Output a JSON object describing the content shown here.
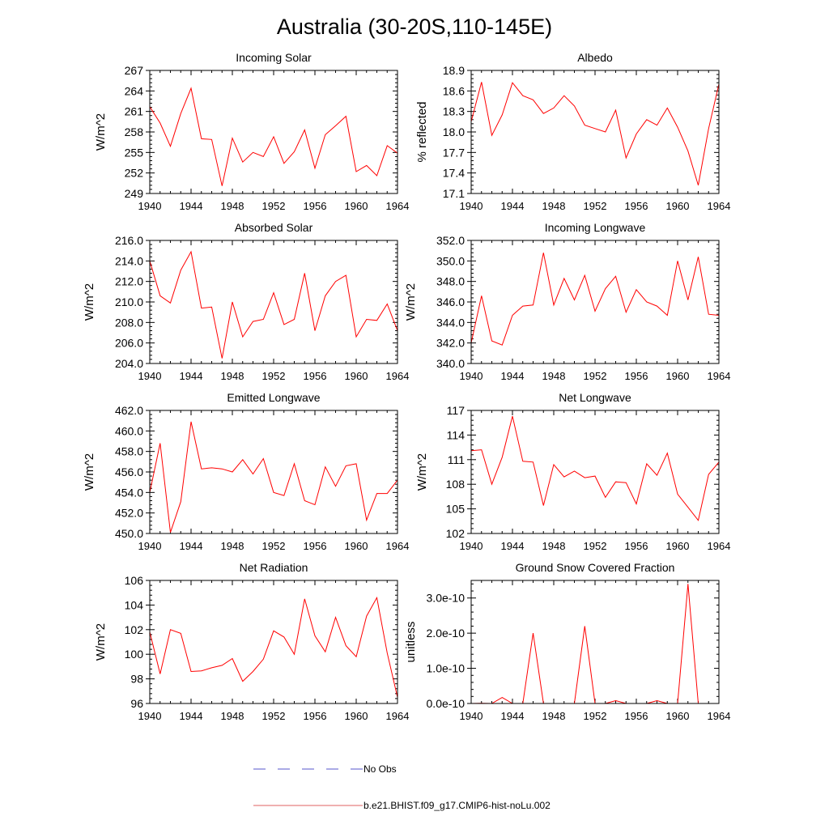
{
  "page": {
    "title": "Australia (30-20S,110-145E)"
  },
  "legend": [
    {
      "label": "No Obs",
      "color": "#5555cc",
      "dash": true
    },
    {
      "label": "b.e21.BHIST.f09_g17.CMIP6-hist-noLu.002",
      "color": "#e06060",
      "dash": false
    }
  ],
  "chart_data": [
    {
      "type": "line",
      "title": "Incoming Solar",
      "ylabel": "W/m^2",
      "xlim": [
        1940,
        1964
      ],
      "ylim": [
        249,
        267
      ],
      "xticks": [
        "1940",
        "1944",
        "1948",
        "1952",
        "1956",
        "1960",
        "1964"
      ],
      "yticks": [
        "249",
        "252",
        "255",
        "258",
        "261",
        "264",
        "267"
      ],
      "x": [
        1940,
        1941,
        1942,
        1943,
        1944,
        1945,
        1946,
        1947,
        1948,
        1949,
        1950,
        1951,
        1952,
        1953,
        1954,
        1955,
        1956,
        1957,
        1958,
        1959,
        1960,
        1961,
        1962,
        1963,
        1964
      ],
      "series": [
        {
          "name": "b.e21.BHIST.f09_g17.CMIP6-hist-noLu.002",
          "color": "#ff0000",
          "values": [
            261.7,
            259.3,
            255.9,
            260.7,
            264.4,
            257.0,
            256.9,
            250.1,
            257.1,
            253.6,
            255.0,
            254.4,
            257.3,
            253.4,
            255.1,
            258.3,
            252.7,
            257.6,
            258.9,
            260.3,
            252.2,
            253.1,
            251.6,
            256.0,
            254.9
          ]
        }
      ]
    },
    {
      "type": "line",
      "title": "Albedo",
      "ylabel": "% reflected",
      "xlim": [
        1940,
        1964
      ],
      "ylim": [
        17.1,
        18.9
      ],
      "xticks": [
        "1940",
        "1944",
        "1948",
        "1952",
        "1956",
        "1960",
        "1964"
      ],
      "yticks": [
        "17.1",
        "17.4",
        "17.7",
        "18.0",
        "18.3",
        "18.6",
        "18.9"
      ],
      "x": [
        1940,
        1941,
        1942,
        1943,
        1944,
        1945,
        1946,
        1947,
        1948,
        1949,
        1950,
        1951,
        1952,
        1953,
        1954,
        1955,
        1956,
        1957,
        1958,
        1959,
        1960,
        1961,
        1962,
        1963,
        1964
      ],
      "series": [
        {
          "name": "b.e21.BHIST.f09_g17.CMIP6-hist-noLu.002",
          "color": "#ff0000",
          "values": [
            18.15,
            18.73,
            17.95,
            18.25,
            18.72,
            18.53,
            18.47,
            18.27,
            18.35,
            18.53,
            18.38,
            18.1,
            18.05,
            18.0,
            18.32,
            17.62,
            17.97,
            18.18,
            18.1,
            18.35,
            18.07,
            17.72,
            17.22,
            18.05,
            18.7
          ]
        }
      ]
    },
    {
      "type": "line",
      "title": "Absorbed Solar",
      "ylabel": "W/m^2",
      "xlim": [
        1940,
        1964
      ],
      "ylim": [
        204.0,
        216.0
      ],
      "xticks": [
        "1940",
        "1944",
        "1948",
        "1952",
        "1956",
        "1960",
        "1964"
      ],
      "yticks": [
        "204.0",
        "206.0",
        "208.0",
        "210.0",
        "212.0",
        "214.0",
        "216.0"
      ],
      "x": [
        1940,
        1941,
        1942,
        1943,
        1944,
        1945,
        1946,
        1947,
        1948,
        1949,
        1950,
        1951,
        1952,
        1953,
        1954,
        1955,
        1956,
        1957,
        1958,
        1959,
        1960,
        1961,
        1962,
        1963,
        1964
      ],
      "series": [
        {
          "name": "b.e21.BHIST.f09_g17.CMIP6-hist-noLu.002",
          "color": "#ff0000",
          "values": [
            214.0,
            210.6,
            209.9,
            213.1,
            214.9,
            209.4,
            209.5,
            204.5,
            210.0,
            206.6,
            208.1,
            208.3,
            210.9,
            207.8,
            208.3,
            212.8,
            207.2,
            210.6,
            212.0,
            212.6,
            206.6,
            208.3,
            208.2,
            209.8,
            207.2
          ]
        }
      ]
    },
    {
      "type": "line",
      "title": "Incoming Longwave",
      "ylabel": "W/m^2",
      "xlim": [
        1940,
        1964
      ],
      "ylim": [
        340.0,
        352.0
      ],
      "xticks": [
        "1940",
        "1944",
        "1948",
        "1952",
        "1956",
        "1960",
        "1964"
      ],
      "yticks": [
        "340.0",
        "342.0",
        "344.0",
        "346.0",
        "348.0",
        "350.0",
        "352.0"
      ],
      "x": [
        1940,
        1941,
        1942,
        1943,
        1944,
        1945,
        1946,
        1947,
        1948,
        1949,
        1950,
        1951,
        1952,
        1953,
        1954,
        1955,
        1956,
        1957,
        1958,
        1959,
        1960,
        1961,
        1962,
        1963,
        1964
      ],
      "series": [
        {
          "name": "b.e21.BHIST.f09_g17.CMIP6-hist-noLu.002",
          "color": "#ff0000",
          "values": [
            342.0,
            346.6,
            342.2,
            341.8,
            344.7,
            345.6,
            345.7,
            350.8,
            345.7,
            348.3,
            346.2,
            348.6,
            345.1,
            347.3,
            348.5,
            345.0,
            347.2,
            346.0,
            345.6,
            344.7,
            350.0,
            346.2,
            350.4,
            344.8,
            344.7
          ]
        }
      ]
    },
    {
      "type": "line",
      "title": "Emitted Longwave",
      "ylabel": "W/m^2",
      "xlim": [
        1940,
        1964
      ],
      "ylim": [
        450.0,
        462.0
      ],
      "xticks": [
        "1940",
        "1944",
        "1948",
        "1952",
        "1956",
        "1960",
        "1964"
      ],
      "yticks": [
        "450.0",
        "452.0",
        "454.0",
        "456.0",
        "458.0",
        "460.0",
        "462.0"
      ],
      "x": [
        1940,
        1941,
        1942,
        1943,
        1944,
        1945,
        1946,
        1947,
        1948,
        1949,
        1950,
        1951,
        1952,
        1953,
        1954,
        1955,
        1956,
        1957,
        1958,
        1959,
        1960,
        1961,
        1962,
        1963,
        1964
      ],
      "series": [
        {
          "name": "b.e21.BHIST.f09_g17.CMIP6-hist-noLu.002",
          "color": "#ff0000",
          "values": [
            454.0,
            458.8,
            450.1,
            453.1,
            460.9,
            456.3,
            456.4,
            456.3,
            456.0,
            457.2,
            455.8,
            457.3,
            454.0,
            453.7,
            456.8,
            453.2,
            452.8,
            456.5,
            454.6,
            456.6,
            456.8,
            451.3,
            453.9,
            453.9,
            455.2
          ]
        }
      ]
    },
    {
      "type": "line",
      "title": "Net Longwave",
      "ylabel": "W/m^2",
      "xlim": [
        1940,
        1964
      ],
      "ylim": [
        102,
        117
      ],
      "xticks": [
        "1940",
        "1944",
        "1948",
        "1952",
        "1956",
        "1960",
        "1964"
      ],
      "yticks": [
        "102",
        "105",
        "108",
        "111",
        "114",
        "117"
      ],
      "x": [
        1940,
        1941,
        1942,
        1943,
        1944,
        1945,
        1946,
        1947,
        1948,
        1949,
        1950,
        1951,
        1952,
        1953,
        1954,
        1955,
        1956,
        1957,
        1958,
        1959,
        1960,
        1961,
        1962,
        1963,
        1964
      ],
      "series": [
        {
          "name": "b.e21.BHIST.f09_g17.CMIP6-hist-noLu.002",
          "color": "#ff0000",
          "values": [
            112.1,
            112.2,
            108.0,
            111.3,
            116.3,
            110.8,
            110.7,
            105.4,
            110.4,
            108.9,
            109.6,
            108.8,
            109.0,
            106.4,
            108.3,
            108.2,
            105.6,
            110.5,
            109.1,
            111.8,
            106.8,
            105.2,
            103.6,
            109.2,
            110.7
          ]
        }
      ]
    },
    {
      "type": "line",
      "title": "Net Radiation",
      "ylabel": "W/m^2",
      "xlim": [
        1940,
        1964
      ],
      "ylim": [
        96,
        106
      ],
      "xticks": [
        "1940",
        "1944",
        "1948",
        "1952",
        "1956",
        "1960",
        "1964"
      ],
      "yticks": [
        "96",
        "98",
        "100",
        "102",
        "104",
        "106"
      ],
      "x": [
        1940,
        1941,
        1942,
        1943,
        1944,
        1945,
        1946,
        1947,
        1948,
        1949,
        1950,
        1951,
        1952,
        1953,
        1954,
        1955,
        1956,
        1957,
        1958,
        1959,
        1960,
        1961,
        1962,
        1963,
        1964
      ],
      "series": [
        {
          "name": "b.e21.BHIST.f09_g17.CMIP6-hist-noLu.002",
          "color": "#ff0000",
          "values": [
            101.8,
            98.4,
            102.0,
            101.7,
            98.6,
            98.65,
            98.9,
            99.1,
            99.65,
            97.8,
            98.6,
            99.6,
            101.9,
            101.4,
            100.0,
            104.5,
            101.5,
            100.2,
            103.0,
            100.7,
            99.8,
            103.1,
            104.6,
            100.1,
            96.5
          ]
        }
      ]
    },
    {
      "type": "line",
      "title": "Ground Snow Covered Fraction",
      "ylabel": "unitless",
      "xlim": [
        1940,
        1964
      ],
      "ylim": [
        0,
        3.5e-10
      ],
      "xticks": [
        "1940",
        "1944",
        "1948",
        "1952",
        "1956",
        "1960",
        "1964"
      ],
      "yticks": [
        "0.0e-10",
        "1.0e-10",
        "2.0e-10",
        "3.0e-10"
      ],
      "ytick_values": [
        0,
        1e-10,
        2e-10,
        3e-10
      ],
      "x": [
        1940,
        1941,
        1942,
        1943,
        1944,
        1945,
        1946,
        1947,
        1948,
        1949,
        1950,
        1951,
        1952,
        1953,
        1954,
        1955,
        1956,
        1957,
        1958,
        1959,
        1960,
        1961,
        1962,
        1963,
        1964
      ],
      "series": [
        {
          "name": "b.e21.BHIST.f09_g17.CMIP6-hist-noLu.002",
          "color": "#ff0000",
          "values": [
            0,
            5e-13,
            0,
            1.7e-11,
            0,
            0,
            2e-10,
            0,
            0,
            0,
            0,
            2.2e-10,
            0,
            0,
            8e-12,
            0,
            0,
            0,
            8e-12,
            0,
            0,
            3.4e-10,
            0,
            0,
            0
          ]
        }
      ]
    }
  ]
}
